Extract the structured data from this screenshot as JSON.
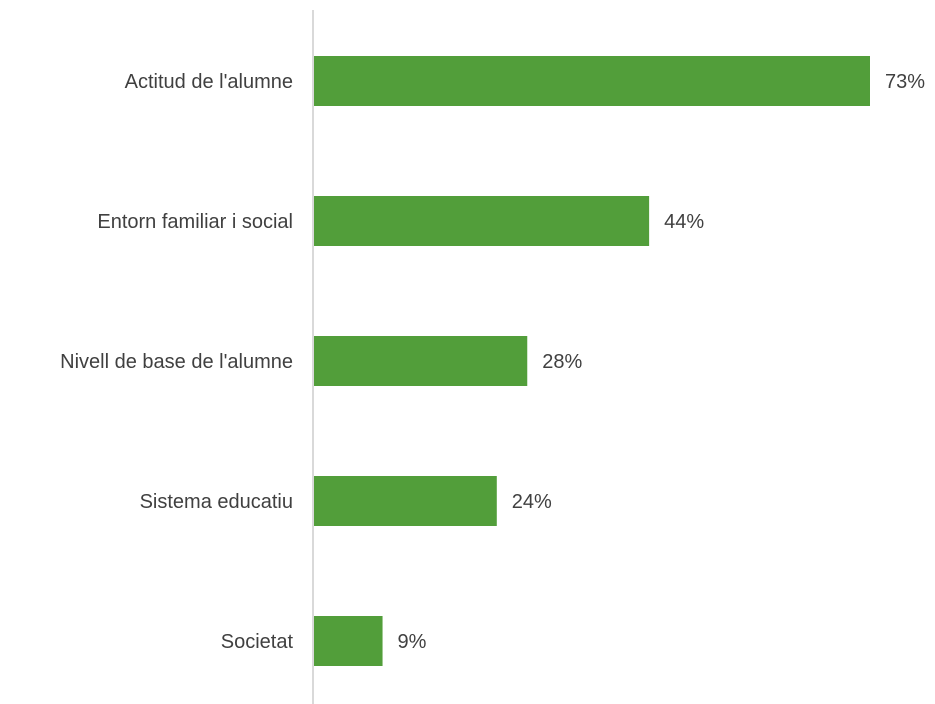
{
  "chart_data": {
    "type": "bar",
    "orientation": "horizontal",
    "categories": [
      "Actitud de l'alumne",
      "Entorn familiar i social",
      "Nivell de base de l'alumne",
      "Sistema educatiu",
      "Societat"
    ],
    "values": [
      73,
      44,
      28,
      24,
      9
    ],
    "value_labels": [
      "73%",
      "44%",
      "28%",
      "24%",
      "9%"
    ],
    "unit": "%",
    "xlim": [
      0,
      73
    ],
    "grid": false,
    "legend": "none",
    "colors": {
      "bar": "#529e3a",
      "axis": "#d9d9d9",
      "text": "#404040"
    }
  }
}
